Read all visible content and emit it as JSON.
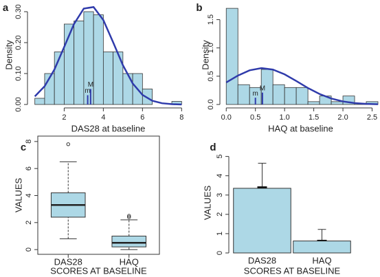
{
  "chart_data": [
    {
      "type": "histogram",
      "label": "a",
      "xlabel": "DAS28 at baseline",
      "ylabel": "Density",
      "bins": [
        0.5,
        1.0,
        1.5,
        2.0,
        2.5,
        3.0,
        3.5,
        4.0,
        4.5,
        5.0,
        5.5,
        6.0,
        6.5,
        7.0,
        7.5,
        8.0
      ],
      "values": [
        0.02,
        0.1,
        0.17,
        0.26,
        0.27,
        0.3,
        0.29,
        0.17,
        0.17,
        0.1,
        0.1,
        0.05,
        0,
        0,
        0.01
      ],
      "color": "#add8e6",
      "curve": {
        "color": "#2f3bab",
        "x": [
          0.5,
          1.0,
          1.5,
          2.0,
          2.5,
          3.0,
          3.5,
          4.0,
          4.5,
          5.0,
          5.5,
          6.0,
          6.5,
          7.0,
          7.5,
          8.0
        ],
        "values": [
          0.026,
          0.059,
          0.113,
          0.186,
          0.26,
          0.31,
          0.315,
          0.273,
          0.201,
          0.127,
          0.068,
          0.031,
          0.012,
          0.004,
          0.001,
          0.0
        ]
      },
      "markers": [
        {
          "label": "m",
          "x": 3.2,
          "height": 0.03
        },
        {
          "label": "M",
          "x": 3.35,
          "height": 0.05
        }
      ],
      "xlim": [
        0.3,
        8.2
      ],
      "ylim": [
        0,
        0.32
      ],
      "xticks": [
        2,
        4,
        6,
        8
      ],
      "yticks": [
        {
          "value": 0,
          "label": "0.00"
        },
        {
          "value": 0.1,
          "label": "0.10"
        },
        {
          "value": 0.2,
          "label": "0.20"
        },
        {
          "value": 0.3,
          "label": "0.30"
        }
      ]
    },
    {
      "type": "histogram",
      "label": "b",
      "xlabel": "HAQ at baseline",
      "ylabel": "Density",
      "bins": [
        0,
        0.2,
        0.4,
        0.6,
        0.8,
        1.0,
        1.2,
        1.4,
        1.6,
        1.8,
        2.0,
        2.2,
        2.4,
        2.6
      ],
      "values": [
        1.7,
        0.35,
        0.3,
        0.62,
        0.35,
        0.3,
        0.3,
        0.05,
        0.15,
        0.05,
        0.15,
        0.02,
        0.05
      ],
      "color": "#add8e6",
      "curve": {
        "color": "#2f3bab",
        "x": [
          0,
          0.2,
          0.4,
          0.6,
          0.8,
          1.0,
          1.2,
          1.4,
          1.6,
          1.8,
          2.0,
          2.2,
          2.4,
          2.6
        ],
        "values": [
          0.39,
          0.511,
          0.604,
          0.643,
          0.617,
          0.533,
          0.415,
          0.291,
          0.185,
          0.106,
          0.054,
          0.025,
          0.011,
          0.004
        ]
      },
      "markers": [
        {
          "label": "m",
          "x": 0.5,
          "height": 0.12
        },
        {
          "label": "M",
          "x": 0.62,
          "height": 0.21
        }
      ],
      "xlim": [
        -0.05,
        2.6
      ],
      "ylim": [
        0,
        1.75
      ],
      "xticks": [
        {
          "value": 0,
          "label": "0.0"
        },
        0.5,
        {
          "value": 1,
          "label": "1.0"
        },
        1.5,
        {
          "value": 2,
          "label": "2.0"
        },
        2.5
      ],
      "yticks": [
        {
          "value": 0,
          "label": "0.0"
        },
        0.5,
        {
          "value": 1,
          "label": "1.0"
        },
        1.5
      ]
    },
    {
      "type": "box",
      "label": "c",
      "xlabel": "SCORES AT BASELINE",
      "ylabel": "VALUES",
      "categories": [
        "DAS28",
        "HAQ"
      ],
      "color": "#add8e6",
      "min": [
        0.8,
        0.0
      ],
      "q1": [
        2.4,
        0.2
      ],
      "median": [
        3.3,
        0.5
      ],
      "q3": [
        4.2,
        1.0
      ],
      "max": [
        6.5,
        2.2
      ],
      "outliers": [
        [
          7.8
        ],
        [
          2.4,
          2.5
        ]
      ],
      "ylim": [
        -0.35,
        8.4
      ],
      "yticks": [
        0,
        2,
        4,
        6,
        8
      ]
    },
    {
      "type": "bar",
      "label": "d",
      "xlabel": "SCORES AT BASELINE",
      "ylabel": "VALUES",
      "categories": [
        "DAS28",
        "HAQ"
      ],
      "color": "#add8e6",
      "values": [
        3.35,
        0.62
      ],
      "errors": [
        1.3,
        0.6
      ],
      "se": [
        0.1,
        0.06
      ],
      "ylim": [
        0,
        5.2
      ],
      "yticks": [
        0,
        1,
        2,
        3,
        4,
        5
      ]
    }
  ]
}
